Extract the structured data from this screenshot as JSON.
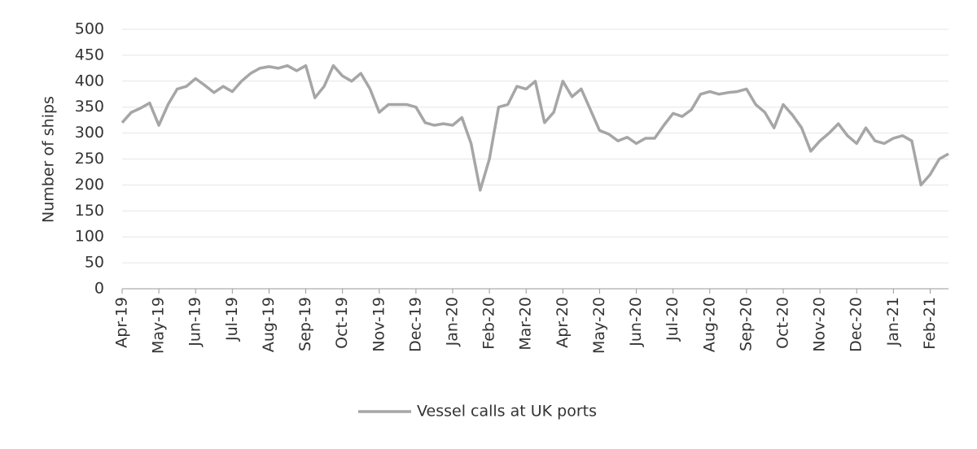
{
  "chart_data": {
    "type": "line",
    "y_label": "Number of ships",
    "categories": [
      "Apr-19",
      null,
      null,
      null,
      "May-19",
      null,
      null,
      null,
      "Jun-19",
      null,
      null,
      null,
      "Jul-19",
      null,
      null,
      null,
      "Aug-19",
      null,
      null,
      null,
      "Sep-19",
      null,
      null,
      null,
      "Oct-19",
      null,
      null,
      null,
      "Nov-19",
      null,
      null,
      null,
      "Dec-19",
      null,
      null,
      null,
      "Jan-20",
      null,
      null,
      null,
      "Feb-20",
      null,
      null,
      null,
      "Mar-20",
      null,
      null,
      null,
      "Apr-20",
      null,
      null,
      null,
      "May-20",
      null,
      null,
      null,
      "Jun-20",
      null,
      null,
      null,
      "Jul-20",
      null,
      null,
      null,
      "Aug-20",
      null,
      null,
      null,
      "Sep-20",
      null,
      null,
      null,
      "Oct-20",
      null,
      null,
      null,
      "Nov-20",
      null,
      null,
      null,
      "Dec-20",
      null,
      null,
      null,
      "Jan-21",
      null,
      null,
      null,
      "Feb-21",
      null,
      null
    ],
    "series": [
      {
        "name": "Vessel calls at UK ports",
        "color": "#a6a6a6",
        "values": [
          320,
          340,
          348,
          358,
          315,
          355,
          385,
          390,
          405,
          392,
          378,
          390,
          380,
          400,
          415,
          425,
          428,
          425,
          430,
          420,
          430,
          368,
          390,
          430,
          410,
          400,
          415,
          385,
          340,
          355,
          355,
          355,
          350,
          320,
          315,
          318,
          315,
          330,
          280,
          190,
          250,
          350,
          355,
          390,
          385,
          400,
          320,
          340,
          400,
          370,
          385,
          345,
          305,
          298,
          285,
          292,
          280,
          290,
          290,
          315,
          338,
          332,
          345,
          375,
          380,
          375,
          378,
          380,
          385,
          355,
          340,
          310,
          355,
          335,
          310,
          265,
          285,
          300,
          318,
          295,
          280,
          310,
          285,
          280,
          290,
          295,
          285,
          200,
          220,
          250,
          260
        ]
      }
    ],
    "ylim": [
      0,
      500
    ],
    "yticks": [
      0,
      50,
      100,
      150,
      200,
      250,
      300,
      350,
      400,
      450,
      500
    ],
    "grid": true,
    "legend": "bottom"
  }
}
